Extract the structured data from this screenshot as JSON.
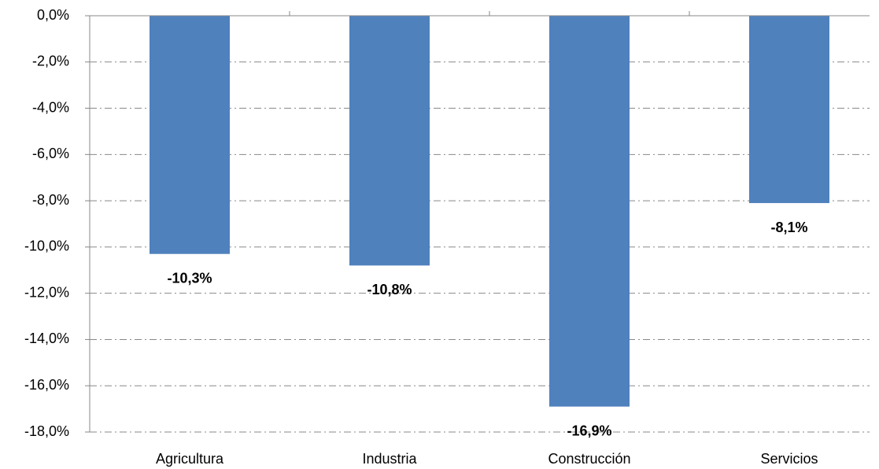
{
  "chart_data": {
    "type": "bar",
    "categories": [
      "Agricultura",
      "Industria",
      "Construcción",
      "Servicios"
    ],
    "values": [
      -10.3,
      -10.8,
      -16.9,
      -8.1
    ],
    "value_labels": [
      "-10,3%",
      "-10,8%",
      "-16,9%",
      "-8,1%"
    ],
    "color": "#4f81bd",
    "ylim": [
      -18,
      0
    ],
    "yticks": [
      {
        "value": 0,
        "label": "0,0%"
      },
      {
        "value": -2,
        "label": "-2,0%"
      },
      {
        "value": -4,
        "label": "-4,0%"
      },
      {
        "value": -6,
        "label": "-6,0%"
      },
      {
        "value": -8,
        "label": "-8,0%"
      },
      {
        "value": -10,
        "label": "-10,0%"
      },
      {
        "value": -12,
        "label": "-12,0%"
      },
      {
        "value": -14,
        "label": "-14,0%"
      },
      {
        "value": -16,
        "label": "-16,0%"
      },
      {
        "value": -18,
        "label": "-18,0%"
      }
    ],
    "grid": true
  }
}
